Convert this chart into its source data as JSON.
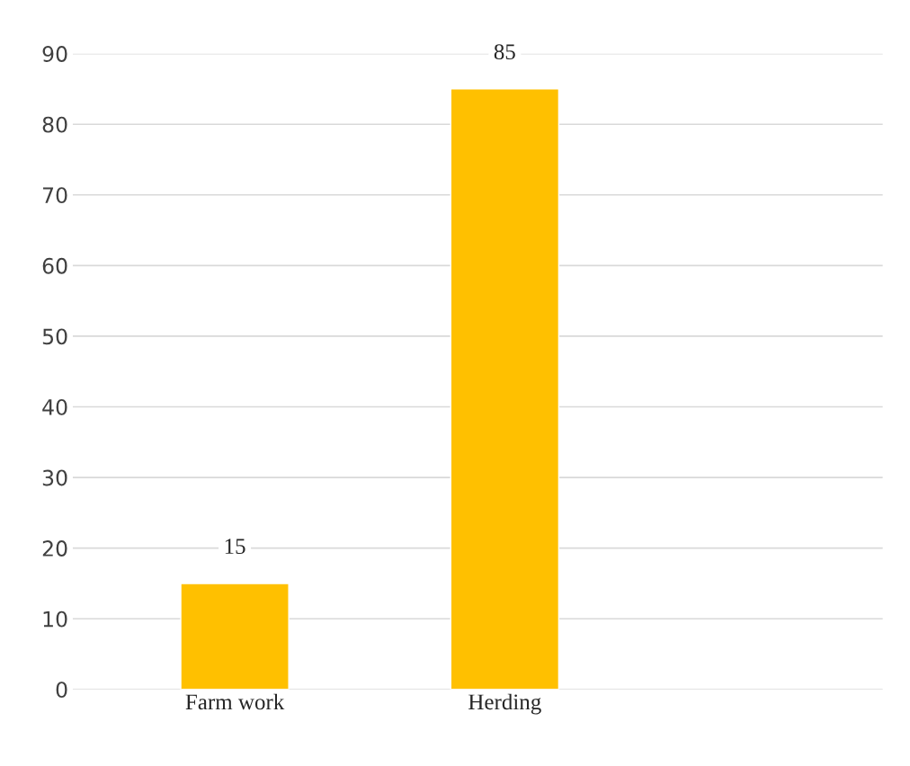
{
  "chart_data": {
    "type": "bar",
    "categories": [
      "Farm work",
      "Herding"
    ],
    "values": [
      15,
      85
    ],
    "color": "#ffc000",
    "ylim": [
      0,
      90
    ],
    "yticks": [
      0,
      10,
      20,
      30,
      40,
      50,
      60,
      70,
      80,
      90
    ],
    "grid": "y",
    "data_labels": true
  }
}
